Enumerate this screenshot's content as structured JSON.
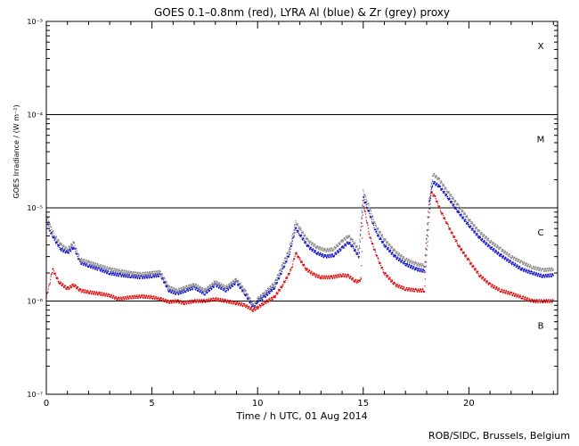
{
  "chart_data": {
    "type": "scatter",
    "title": "GOES 0.1–0.8nm (red), LYRA Al (blue) & Zr (grey) proxy",
    "xlabel": "Time / h UTC, 01 Aug 2014",
    "ylabel": "GOES Irradiance / (W m⁻²)",
    "xlim": [
      0,
      24.2
    ],
    "ylim": [
      1e-07,
      0.001
    ],
    "yscale": "log",
    "x_ticks": [
      0,
      5,
      10,
      15,
      20
    ],
    "y_ticks": [
      {
        "value": 1e-07,
        "label": "10⁻⁷"
      },
      {
        "value": 1e-06,
        "label": "10⁻⁶"
      },
      {
        "value": 1e-05,
        "label": "10⁻⁵"
      },
      {
        "value": 0.0001,
        "label": "10⁻⁴"
      },
      {
        "value": 0.001,
        "label": "10⁻³"
      }
    ],
    "flare_class_lines": [
      1e-06,
      1e-05,
      0.0001
    ],
    "flare_classes": [
      {
        "label": "X",
        "y": 0.00055
      },
      {
        "label": "M",
        "y": 5.5e-05
      },
      {
        "label": "C",
        "y": 5.5e-06
      },
      {
        "label": "B",
        "y": 5.5e-07
      }
    ],
    "series": [
      {
        "color": "#d80000",
        "x": [
          0,
          0.15,
          0.3,
          0.6,
          1.0,
          1.3,
          1.6,
          2.0,
          2.5,
          3.0,
          3.4,
          4.0,
          4.5,
          5.0,
          5.4,
          5.8,
          6.2,
          6.5,
          7.0,
          7.5,
          8.0,
          8.5,
          9.0,
          9.4,
          9.8,
          10.0,
          10.3,
          10.8,
          11.2,
          11.6,
          11.8,
          12.0,
          12.3,
          12.7,
          13.0,
          13.5,
          14.0,
          14.3,
          14.6,
          14.8,
          14.9,
          15.0,
          15.3,
          15.7,
          16.0,
          16.5,
          17.0,
          17.5,
          17.9,
          18.0,
          18.2,
          18.4,
          18.7,
          19.0,
          19.5,
          20.0,
          20.5,
          21.0,
          21.5,
          22.0,
          22.5,
          23.0,
          23.5,
          24.0
        ],
        "y": [
          1.1e-06,
          1.5e-06,
          2.2e-06,
          1.6e-06,
          1.35e-06,
          1.5e-06,
          1.3e-06,
          1.25e-06,
          1.2e-06,
          1.15e-06,
          1.05e-06,
          1.1e-06,
          1.12e-06,
          1.1e-06,
          1.05e-06,
          9.8e-07,
          1e-06,
          9.5e-07,
          1e-06,
          1e-06,
          1.05e-06,
          1e-06,
          9.5e-07,
          9e-07,
          8e-07,
          8.5e-07,
          9.5e-07,
          1.1e-06,
          1.5e-06,
          2.2e-06,
          3.3e-06,
          2.8e-06,
          2.2e-06,
          1.9e-06,
          1.8e-06,
          1.8e-06,
          1.9e-06,
          1.85e-06,
          1.65e-06,
          1.6e-06,
          1.8e-06,
          1.15e-05,
          5e-06,
          2.8e-06,
          2e-06,
          1.5e-06,
          1.35e-06,
          1.3e-06,
          1.3e-06,
          3e-06,
          1.5e-05,
          1.3e-05,
          9e-06,
          6.5e-06,
          4e-06,
          2.7e-06,
          1.9e-06,
          1.5e-06,
          1.3e-06,
          1.2e-06,
          1.1e-06,
          1e-06,
          1e-06,
          1e-06
        ]
      },
      {
        "color": "#0000c8",
        "x": [
          0,
          0.2,
          0.4,
          0.7,
          1.0,
          1.3,
          1.6,
          2.0,
          2.5,
          3.0,
          3.5,
          4.0,
          4.5,
          5.0,
          5.4,
          5.8,
          6.2,
          6.6,
          7.0,
          7.5,
          8.0,
          8.5,
          9.0,
          9.4,
          9.8,
          10.0,
          10.3,
          10.8,
          11.2,
          11.5,
          11.8,
          12.0,
          12.4,
          12.8,
          13.2,
          13.6,
          14.0,
          14.3,
          14.5,
          14.8,
          15.0,
          15.2,
          15.6,
          16.0,
          16.5,
          17.0,
          17.5,
          17.9,
          18.1,
          18.3,
          18.6,
          19.0,
          19.5,
          20.0,
          20.5,
          21.0,
          21.5,
          22.0,
          22.5,
          23.0,
          23.5,
          24.0
        ],
        "y": [
          7.5e-06,
          5.5e-06,
          4.5e-06,
          3.6e-06,
          3.3e-06,
          3.8e-06,
          2.6e-06,
          2.4e-06,
          2.2e-06,
          2e-06,
          1.9e-06,
          1.85e-06,
          1.8e-06,
          1.85e-06,
          1.9e-06,
          1.3e-06,
          1.2e-06,
          1.3e-06,
          1.4e-06,
          1.2e-06,
          1.5e-06,
          1.3e-06,
          1.6e-06,
          1.2e-06,
          8.5e-07,
          1e-06,
          1.1e-06,
          1.4e-06,
          2.2e-06,
          3.2e-06,
          6e-06,
          5.2e-06,
          3.8e-06,
          3.3e-06,
          3e-06,
          3.1e-06,
          3.7e-06,
          4.3e-06,
          3.8e-06,
          3e-06,
          1.3e-05,
          1e-05,
          5.5e-06,
          4e-06,
          3e-06,
          2.5e-06,
          2.2e-06,
          2.1e-06,
          1e-05,
          1.9e-05,
          1.7e-05,
          1.3e-05,
          9e-06,
          6.5e-06,
          4.8e-06,
          3.8e-06,
          3.1e-06,
          2.6e-06,
          2.2e-06,
          2e-06,
          1.85e-06,
          1.9e-06
        ]
      },
      {
        "color": "#808080",
        "x": [
          0,
          0.2,
          0.4,
          0.7,
          1.0,
          1.3,
          1.6,
          2.0,
          2.5,
          3.0,
          3.5,
          4.0,
          4.5,
          5.0,
          5.4,
          5.8,
          6.2,
          6.6,
          7.0,
          7.5,
          8.0,
          8.5,
          9.0,
          9.4,
          9.8,
          10.0,
          10.3,
          10.8,
          11.2,
          11.5,
          11.8,
          12.0,
          12.4,
          12.8,
          13.2,
          13.6,
          14.0,
          14.3,
          14.5,
          14.8,
          15.0,
          15.2,
          15.6,
          16.0,
          16.5,
          17.0,
          17.5,
          17.9,
          18.1,
          18.3,
          18.6,
          19.0,
          19.5,
          20.0,
          20.5,
          21.0,
          21.5,
          22.0,
          22.5,
          23.0,
          23.5,
          24.0
        ],
        "y": [
          8.5e-06,
          6.2e-06,
          5e-06,
          4e-06,
          3.6e-06,
          4.2e-06,
          2.8e-06,
          2.6e-06,
          2.4e-06,
          2.2e-06,
          2.1e-06,
          2e-06,
          1.95e-06,
          2e-06,
          2.05e-06,
          1.4e-06,
          1.3e-06,
          1.4e-06,
          1.5e-06,
          1.3e-06,
          1.6e-06,
          1.4e-06,
          1.7e-06,
          1.3e-06,
          9e-07,
          1.05e-06,
          1.2e-06,
          1.55e-06,
          2.5e-06,
          3.6e-06,
          7e-06,
          6e-06,
          4.4e-06,
          3.8e-06,
          3.5e-06,
          3.6e-06,
          4.4e-06,
          5e-06,
          4.4e-06,
          3.5e-06,
          1.5e-05,
          1.15e-05,
          6.3e-06,
          4.6e-06,
          3.4e-06,
          2.8e-06,
          2.5e-06,
          2.4e-06,
          1.15e-05,
          2.3e-05,
          2e-05,
          1.5e-05,
          1.05e-05,
          7.5e-06,
          5.5e-06,
          4.4e-06,
          3.6e-06,
          3e-06,
          2.6e-06,
          2.3e-06,
          2.15e-06,
          2.2e-06
        ]
      }
    ],
    "credit": "ROB/SIDC, Brussels, Belgium"
  }
}
